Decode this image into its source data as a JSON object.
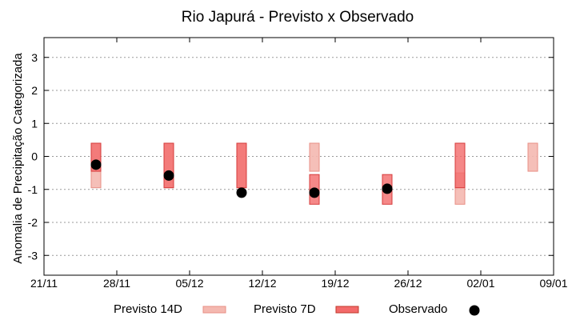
{
  "chart_data": {
    "type": "scatter",
    "title": "Rio Japurá - Previsto x Observado",
    "ylabel": "Anomalia de Precipitação Categorizada",
    "xlabel": "",
    "x_ticks": [
      "21/11",
      "28/11",
      "05/12",
      "12/12",
      "19/12",
      "26/12",
      "02/01",
      "09/01"
    ],
    "y_ticks": [
      3,
      2,
      1,
      0,
      -1,
      -2,
      -3
    ],
    "xlim": [
      "21/11",
      "09/01"
    ],
    "ylim": [
      -3.6,
      3.6
    ],
    "grid": true,
    "legend_position": "bottom",
    "series": [
      {
        "name": "Previsto 14D",
        "kind": "range",
        "color": "#f4b8b0",
        "points": [
          {
            "x": "26/11",
            "low": -0.95,
            "high": 0.4
          },
          {
            "x": "03/12",
            "low": -0.95,
            "high": 0.4
          },
          {
            "x": "10/12",
            "low": -0.95,
            "high": 0.4
          },
          {
            "x": "17/12",
            "low": -0.45,
            "high": 0.4
          },
          {
            "x": "31/12",
            "low": -1.45,
            "high": -0.5
          },
          {
            "x": "07/01",
            "low": -0.45,
            "high": 0.4
          }
        ]
      },
      {
        "name": "Previsto 7D",
        "kind": "range",
        "color": "#f36a6a",
        "points": [
          {
            "x": "26/11",
            "low": -0.45,
            "high": 0.4
          },
          {
            "x": "03/12",
            "low": -0.95,
            "high": 0.4
          },
          {
            "x": "10/12",
            "low": -0.95,
            "high": 0.4
          },
          {
            "x": "17/12",
            "low": -1.45,
            "high": -0.55
          },
          {
            "x": "24/12",
            "low": -1.45,
            "high": -0.55
          },
          {
            "x": "31/12",
            "low": -0.95,
            "high": 0.4
          }
        ]
      },
      {
        "name": "Observado",
        "kind": "point",
        "color": "#000000",
        "points": [
          {
            "x": "26/11",
            "y": -0.25
          },
          {
            "x": "03/12",
            "y": -0.58
          },
          {
            "x": "10/12",
            "y": -1.1
          },
          {
            "x": "17/12",
            "y": -1.1
          },
          {
            "x": "24/12",
            "y": -0.98
          }
        ]
      }
    ]
  }
}
